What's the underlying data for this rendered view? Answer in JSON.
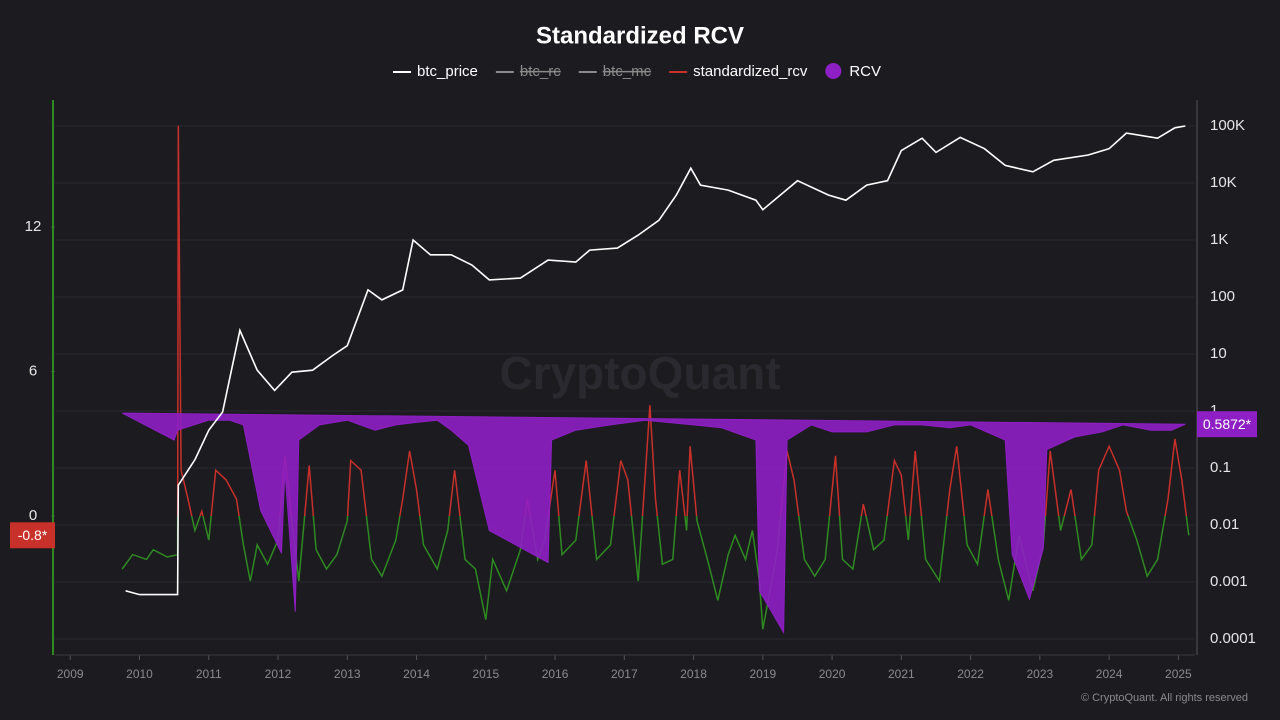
{
  "chart_data": {
    "type": "line",
    "title": "Standardized RCV",
    "watermark": "CryptoQuant",
    "credit": "© CryptoQuant. All rights reserved",
    "xlim": [
      2008.78,
      2025.24
    ],
    "xticks": [
      2009,
      2010,
      2011,
      2012,
      2013,
      2014,
      2015,
      2016,
      2017,
      2018,
      2019,
      2020,
      2021,
      2022,
      2023,
      2024,
      2025
    ],
    "ylim": [
      -5.77,
      17.27
    ],
    "yticks": [
      0,
      6,
      12
    ],
    "y_axis_color": "#2f8a22",
    "y2lim": [
      5.24e-05,
      286000
    ],
    "y2_log": true,
    "y2ticks": [
      {
        "value": 100000,
        "label": "100K"
      },
      {
        "value": 10000,
        "label": "10K"
      },
      {
        "value": 1000,
        "label": "1K"
      },
      100,
      10,
      1,
      0.1,
      0.01,
      0.001,
      0.0001
    ],
    "grid": true,
    "series": [
      {
        "name": "btc_price",
        "color": "#ffffff",
        "axis": "y2",
        "x": [
          2009.8,
          2010.0,
          2010.55,
          2010.56,
          2010.8,
          2011.0,
          2011.2,
          2011.45,
          2011.7,
          2011.95,
          2012.2,
          2012.5,
          2012.8,
          2013.0,
          2013.3,
          2013.5,
          2013.8,
          2013.95,
          2014.2,
          2014.5,
          2014.8,
          2015.05,
          2015.5,
          2015.9,
          2016.3,
          2016.5,
          2016.9,
          2017.2,
          2017.5,
          2017.75,
          2017.96,
          2018.1,
          2018.5,
          2018.9,
          2019.0,
          2019.5,
          2019.95,
          2020.2,
          2020.5,
          2020.8,
          2021.0,
          2021.3,
          2021.5,
          2021.85,
          2022.2,
          2022.5,
          2022.9,
          2023.2,
          2023.7,
          2024.0,
          2024.25,
          2024.7,
          2024.95,
          2025.1
        ],
        "values": [
          0.0007,
          0.0006,
          0.0006,
          0.05,
          0.14,
          0.46,
          0.96,
          26,
          5.2,
          2.3,
          4.8,
          5.2,
          9.6,
          14,
          133,
          89,
          133,
          1000,
          550,
          550,
          365,
          200,
          215,
          445,
          410,
          665,
          720,
          1220,
          2220,
          6130,
          18200,
          9200,
          7500,
          5000,
          3400,
          11000,
          6130,
          5000,
          9200,
          11000,
          37000,
          61000,
          34500,
          63000,
          40000,
          20400,
          15700,
          25000,
          31000,
          40000,
          75000,
          61000,
          93000,
          100000
        ]
      },
      {
        "name": "btc_rc",
        "color": "#8a8a8a",
        "hidden": true
      },
      {
        "name": "btc_mc",
        "color": "#8a8a8a",
        "hidden": true
      },
      {
        "name": "standardized_rcv",
        "color": "#c8302a",
        "negative_color": "#2f8a22",
        "last_label": "-0.8*",
        "x": [
          2009.75,
          2009.9,
          2010.1,
          2010.2,
          2010.4,
          2010.55,
          2010.56,
          2010.6,
          2010.7,
          2010.8,
          2010.9,
          2011.0,
          2011.1,
          2011.25,
          2011.4,
          2011.5,
          2011.6,
          2011.7,
          2011.85,
          2012.0,
          2012.1,
          2012.2,
          2012.3,
          2012.45,
          2012.55,
          2012.7,
          2012.85,
          2013.0,
          2013.05,
          2013.2,
          2013.35,
          2013.5,
          2013.7,
          2013.8,
          2013.9,
          2014.0,
          2014.1,
          2014.3,
          2014.45,
          2014.55,
          2014.7,
          2014.85,
          2015.0,
          2015.1,
          2015.3,
          2015.5,
          2015.6,
          2015.75,
          2015.85,
          2016.0,
          2016.1,
          2016.3,
          2016.45,
          2016.6,
          2016.8,
          2016.95,
          2017.05,
          2017.2,
          2017.37,
          2017.45,
          2017.55,
          2017.7,
          2017.8,
          2017.9,
          2017.95,
          2018.05,
          2018.2,
          2018.35,
          2018.5,
          2018.6,
          2018.75,
          2018.85,
          2018.95,
          2019.0,
          2019.2,
          2019.35,
          2019.45,
          2019.6,
          2019.75,
          2019.9,
          2020.05,
          2020.15,
          2020.3,
          2020.45,
          2020.6,
          2020.75,
          2020.9,
          2021.0,
          2021.1,
          2021.2,
          2021.35,
          2021.55,
          2021.7,
          2021.8,
          2021.95,
          2022.1,
          2022.25,
          2022.4,
          2022.55,
          2022.7,
          2022.8,
          2022.9,
          2023.05,
          2023.15,
          2023.3,
          2023.45,
          2023.6,
          2023.75,
          2023.85,
          2024.0,
          2024.15,
          2024.25,
          2024.4,
          2024.55,
          2024.7,
          2024.85,
          2024.95,
          2025.05,
          2025.15
        ],
        "values": [
          -2.2,
          -1.6,
          -1.8,
          -1.4,
          -1.7,
          -1.6,
          16.2,
          1.9,
          0.7,
          -0.6,
          0.2,
          -1.0,
          1.9,
          1.5,
          0.7,
          -1.2,
          -2.7,
          -1.2,
          -2.0,
          -1.0,
          2.5,
          -0.2,
          -2.7,
          2.1,
          -1.4,
          -2.2,
          -1.6,
          -0.2,
          2.3,
          1.9,
          -1.8,
          -2.5,
          -1.0,
          0.7,
          2.7,
          1.1,
          -1.2,
          -2.2,
          -0.6,
          1.9,
          -1.8,
          -2.2,
          -4.3,
          -1.8,
          -3.1,
          -1.4,
          0.7,
          -1.8,
          -1.0,
          1.9,
          -1.6,
          -1.0,
          2.3,
          -1.8,
          -1.2,
          2.3,
          1.5,
          -2.7,
          4.6,
          0.7,
          -2.0,
          -1.8,
          1.9,
          -0.6,
          2.9,
          -0.2,
          -1.8,
          -3.5,
          -1.6,
          -0.8,
          -1.8,
          -0.6,
          -2.7,
          -4.7,
          -1.6,
          2.7,
          1.5,
          -1.8,
          -2.5,
          -1.8,
          2.5,
          -1.8,
          -2.2,
          0.5,
          -1.4,
          -1.0,
          2.3,
          1.7,
          -1.0,
          2.7,
          -1.8,
          -2.7,
          1.1,
          2.9,
          -1.2,
          -2.0,
          1.1,
          -1.8,
          -3.5,
          -0.8,
          -2.0,
          -3.1,
          -1.2,
          2.7,
          -0.6,
          1.1,
          -1.8,
          -1.2,
          1.9,
          2.9,
          1.9,
          0.2,
          -1.0,
          -2.5,
          -1.8,
          0.7,
          3.2,
          1.5,
          -0.8
        ]
      },
      {
        "name": "RCV",
        "type": "area",
        "color": "#8e1fc4",
        "axis": "y2",
        "last_label": "0.5872*",
        "x": [
          2009.75,
          2010.5,
          2010.55,
          2011.0,
          2011.3,
          2011.5,
          2011.75,
          2012.05,
          2012.1,
          2012.25,
          2012.3,
          2012.6,
          2013.0,
          2013.4,
          2013.7,
          2014.0,
          2014.3,
          2014.5,
          2014.75,
          2015.05,
          2015.9,
          2015.95,
          2016.3,
          2016.8,
          2017.3,
          2018.0,
          2018.4,
          2018.9,
          2018.95,
          2019.3,
          2019.35,
          2019.7,
          2020.0,
          2020.5,
          2020.9,
          2021.3,
          2021.7,
          2022.0,
          2022.5,
          2022.6,
          2022.85,
          2023.05,
          2023.1,
          2023.5,
          2023.9,
          2024.2,
          2024.6,
          2024.9,
          2025.1
        ],
        "values": [
          0.92,
          0.31,
          0.46,
          0.69,
          0.69,
          0.57,
          0.018,
          0.0032,
          0.09,
          0.0003,
          0.31,
          0.57,
          0.69,
          0.46,
          0.57,
          0.63,
          0.69,
          0.46,
          0.25,
          0.008,
          0.0022,
          0.31,
          0.46,
          0.57,
          0.69,
          0.57,
          0.51,
          0.31,
          0.0007,
          0.00013,
          0.31,
          0.57,
          0.43,
          0.43,
          0.57,
          0.57,
          0.51,
          0.57,
          0.31,
          0.003,
          0.0005,
          0.0039,
          0.21,
          0.35,
          0.43,
          0.57,
          0.46,
          0.46,
          0.5872
        ]
      }
    ]
  }
}
